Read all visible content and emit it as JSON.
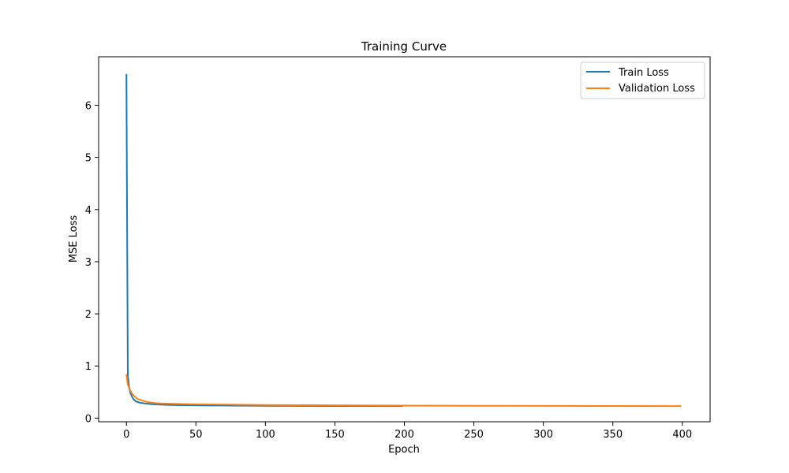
{
  "chart_data": {
    "type": "line",
    "title": "Training Curve",
    "xlabel": "Epoch",
    "ylabel": "MSE Loss",
    "xlim": [
      -20,
      420
    ],
    "ylim": [
      -0.07,
      6.93
    ],
    "xticks": [
      0,
      50,
      100,
      150,
      200,
      250,
      300,
      350,
      400
    ],
    "yticks": [
      0,
      1,
      2,
      3,
      4,
      5,
      6
    ],
    "grid": false,
    "legend_position": "top-right",
    "series": [
      {
        "name": "Train Loss",
        "color": "#1f77b4",
        "x": [
          0,
          1,
          2,
          3,
          4,
          5,
          6,
          7,
          8,
          10,
          12,
          15,
          20,
          25,
          30,
          40,
          50,
          75,
          100,
          125,
          150,
          175,
          199
        ],
        "y": [
          6.6,
          0.82,
          0.58,
          0.47,
          0.41,
          0.37,
          0.34,
          0.32,
          0.31,
          0.295,
          0.285,
          0.275,
          0.265,
          0.258,
          0.253,
          0.248,
          0.245,
          0.24,
          0.237,
          0.235,
          0.233,
          0.232,
          0.231
        ]
      },
      {
        "name": "Validation Loss",
        "color": "#ff7f0e",
        "x": [
          0,
          1,
          2,
          3,
          4,
          5,
          6,
          7,
          8,
          10,
          12,
          15,
          20,
          25,
          30,
          40,
          50,
          75,
          100,
          150,
          200,
          250,
          300,
          350,
          399
        ],
        "y": [
          0.84,
          0.64,
          0.57,
          0.52,
          0.47,
          0.44,
          0.41,
          0.39,
          0.37,
          0.35,
          0.33,
          0.31,
          0.29,
          0.282,
          0.277,
          0.27,
          0.265,
          0.258,
          0.252,
          0.245,
          0.24,
          0.237,
          0.234,
          0.232,
          0.23
        ]
      }
    ]
  }
}
